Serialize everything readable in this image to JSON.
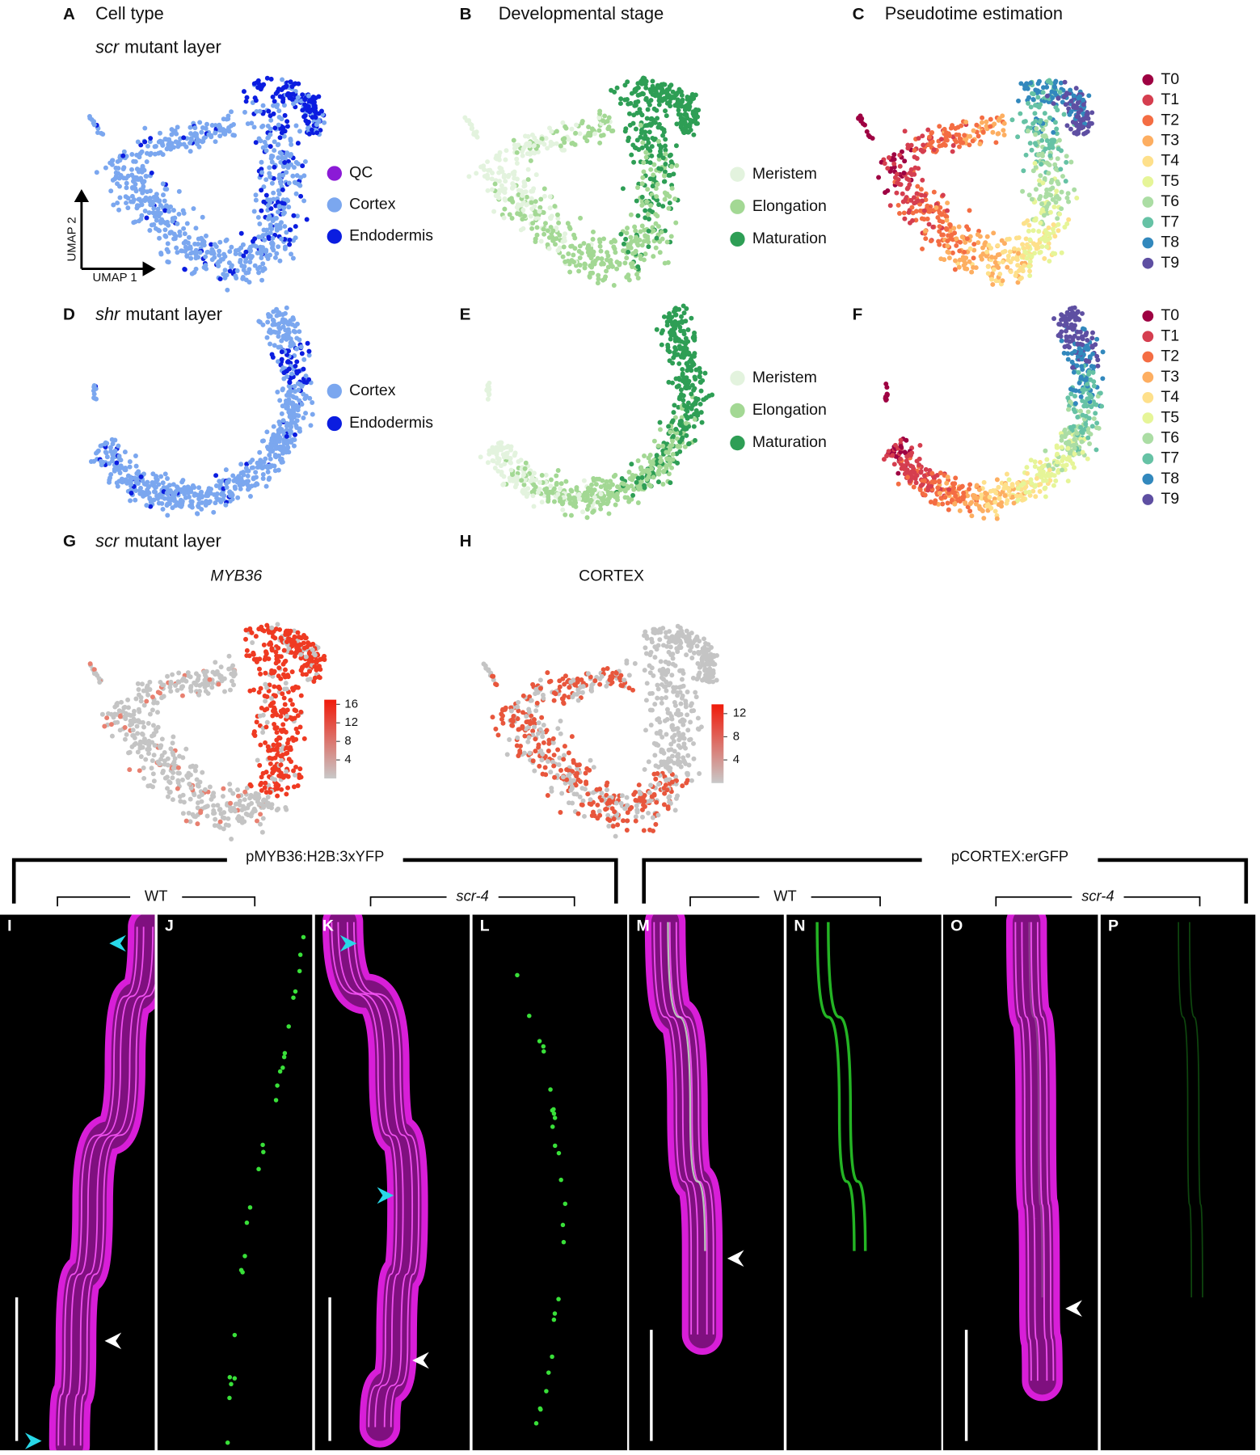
{
  "panels": [
    {
      "letter": "A",
      "title": "Cell type",
      "subtitle": {
        "italic": "scr",
        "text": "mutant layer"
      },
      "legend": [
        "QC",
        "Cortex",
        "Endodermis"
      ],
      "axes": [
        "UMAP 2",
        "UMAP 1"
      ]
    },
    {
      "letter": "B",
      "title": "Developmental stage",
      "legend": [
        "Meristem",
        "Elongation",
        "Maturation"
      ]
    },
    {
      "letter": "C",
      "title": "Pseudotime estimation",
      "legend": [
        "T0",
        "T1",
        "T2",
        "T3",
        "T4",
        "T5",
        "T6",
        "T7",
        "T8",
        "T9"
      ]
    },
    {
      "letter": "D",
      "subtitle": {
        "italic": "shr",
        "text": "mutant layer"
      },
      "legend": [
        "Cortex",
        "Endodermis"
      ]
    },
    {
      "letter": "E",
      "legend": [
        "Meristem",
        "Elongation",
        "Maturation"
      ]
    },
    {
      "letter": "F",
      "legend": [
        "T0",
        "T1",
        "T2",
        "T3",
        "T4",
        "T5",
        "T6",
        "T7",
        "T8",
        "T9"
      ]
    },
    {
      "letter": "G",
      "subtitle": {
        "italic": "scr",
        "text": "mutant layer"
      },
      "gene": "MYB36",
      "colorbar": [
        "16",
        "12",
        "8",
        "4"
      ]
    },
    {
      "letter": "H",
      "gene": "CORTEX",
      "colorbar": [
        "12",
        "8",
        "4"
      ]
    }
  ],
  "microscopy": {
    "groups": [
      {
        "label": "pMYB36:H2B:3xYFP",
        "subgroups": [
          "WT",
          "scr-4"
        ]
      },
      {
        "label": "pCORTEX:erGFP",
        "subgroups": [
          "WT",
          "scr-4"
        ]
      }
    ],
    "panels": [
      "I",
      "J",
      "K",
      "L",
      "M",
      "N",
      "O",
      "P"
    ]
  }
}
